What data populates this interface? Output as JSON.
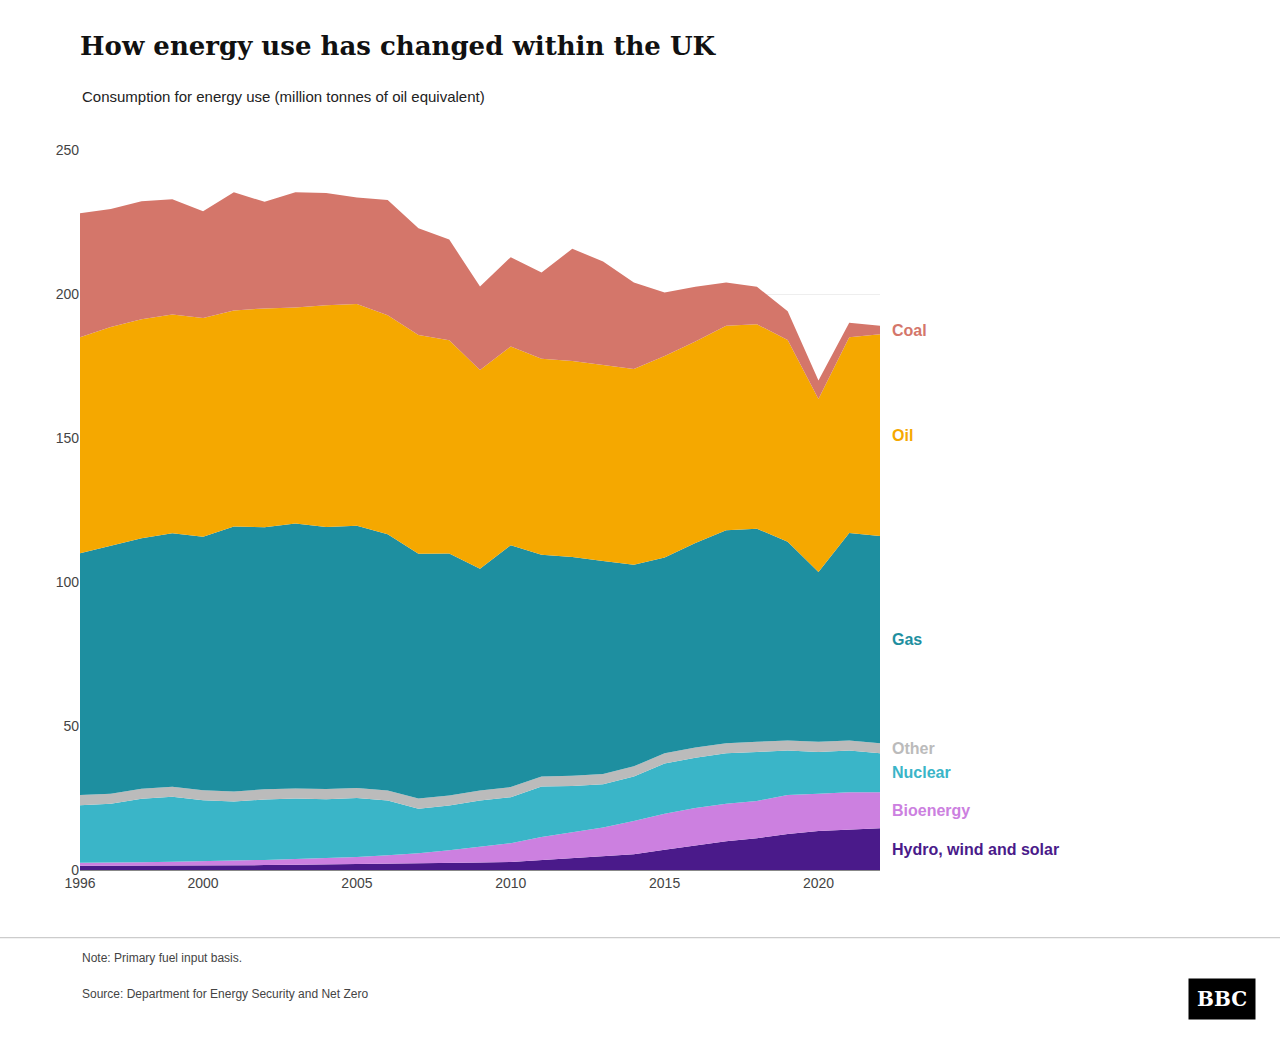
{
  "chart_data": {
    "type": "area",
    "stacked": true,
    "title": "How energy use has changed within the UK",
    "subtitle": "Consumption for energy use (million tonnes of oil equivalent)",
    "note": "Note: Primary fuel input basis.",
    "source": "Source: Department for Energy Security and Net Zero",
    "logo": "BBC",
    "x": [
      1996,
      1997,
      1998,
      1999,
      2000,
      2001,
      2002,
      2003,
      2004,
      2005,
      2006,
      2007,
      2008,
      2009,
      2010,
      2011,
      2012,
      2013,
      2014,
      2015,
      2016,
      2017,
      2018,
      2019,
      2020,
      2021,
      2022
    ],
    "series": [
      {
        "name": "Hydro, wind and solar",
        "color": "#4a1a8a",
        "values": [
          1.5,
          1.5,
          1.5,
          1.6,
          1.7,
          1.7,
          1.7,
          1.8,
          1.9,
          2.0,
          2.1,
          2.3,
          2.4,
          2.6,
          2.8,
          3.5,
          4.2,
          4.8,
          5.5,
          7.0,
          8.5,
          10.0,
          11.0,
          12.5,
          13.5,
          14.0,
          14.5
        ]
      },
      {
        "name": "Bioenergy",
        "color": "#cc80e0",
        "values": [
          1.0,
          1.0,
          1.2,
          1.3,
          1.5,
          1.6,
          1.8,
          2.0,
          2.2,
          2.5,
          3.0,
          3.5,
          4.5,
          5.5,
          6.5,
          8.0,
          9.0,
          10.0,
          11.5,
          12.5,
          13.0,
          13.0,
          13.0,
          13.5,
          13.0,
          13.0,
          12.5
        ]
      },
      {
        "name": "Nuclear",
        "color": "#3ab5c8",
        "values": [
          20.0,
          20.5,
          22.0,
          22.5,
          21.0,
          20.5,
          21.0,
          21.0,
          20.5,
          20.5,
          19.0,
          15.5,
          15.5,
          16.0,
          16.0,
          17.5,
          16.0,
          15.0,
          15.5,
          17.5,
          17.5,
          17.5,
          17.0,
          15.5,
          14.5,
          14.5,
          13.5
        ]
      },
      {
        "name": "Other",
        "color": "#bbbbbb",
        "values": [
          3.5,
          3.5,
          3.5,
          3.5,
          3.5,
          3.5,
          3.5,
          3.5,
          3.5,
          3.5,
          3.5,
          3.5,
          3.5,
          3.5,
          3.5,
          3.5,
          3.5,
          3.5,
          3.5,
          3.5,
          3.5,
          3.5,
          3.5,
          3.5,
          3.5,
          3.5,
          3.5
        ]
      },
      {
        "name": "Gas",
        "color": "#1e8fa0",
        "values": [
          84.0,
          86.0,
          87.0,
          88.0,
          88.0,
          92.0,
          91.0,
          92.0,
          91.0,
          91.0,
          89.0,
          85.0,
          84.0,
          77.0,
          84.0,
          77.0,
          76.0,
          74.0,
          70.0,
          68.0,
          71.0,
          74.0,
          74.0,
          69.0,
          59.0,
          72.0,
          72.0
        ]
      },
      {
        "name": "Oil",
        "color": "#f5a800",
        "values": [
          75.0,
          76.0,
          76.0,
          76.0,
          76.0,
          75.0,
          76.0,
          75.0,
          77.0,
          77.0,
          76.0,
          76.0,
          74.0,
          69.0,
          69.0,
          68.0,
          68.0,
          68.0,
          68.0,
          70.0,
          70.0,
          71.0,
          71.0,
          70.0,
          60.0,
          68.0,
          70.0
        ]
      },
      {
        "name": "Coal",
        "color": "#d4766a",
        "values": [
          43.0,
          41.0,
          41.0,
          40.0,
          37.0,
          41.0,
          37.0,
          40.0,
          39.0,
          37.0,
          40.0,
          37.0,
          35.0,
          29.0,
          31.0,
          30.0,
          39.0,
          36.0,
          30.0,
          22.0,
          19.0,
          15.0,
          13.0,
          10.0,
          6.5,
          5.0,
          3.0
        ]
      }
    ],
    "xlim": [
      1996,
      2022
    ],
    "xticks": [
      1996,
      2000,
      2005,
      2010,
      2015,
      2020
    ],
    "ylim": [
      0,
      250
    ],
    "yticks": [
      0,
      50,
      100,
      150,
      200,
      250
    ],
    "grid": true
  }
}
